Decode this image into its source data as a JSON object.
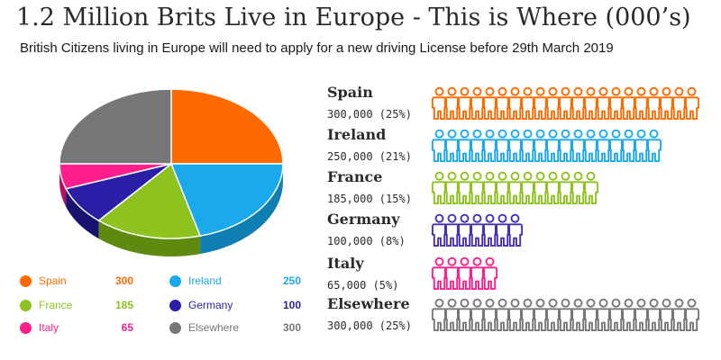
{
  "header": {
    "title": "1.2 Million Brits Live in Europe - This is Where (000’s)",
    "subtitle": "British Citizens living in Europe will need to apply for a new driving License before 29th March 2019"
  },
  "legend": [
    {
      "name": "Spain",
      "value": "300",
      "color": "#ff6a00"
    },
    {
      "name": "Ireland",
      "value": "250",
      "color": "#1aa9ec"
    },
    {
      "name": "France",
      "value": "185",
      "color": "#8dc21f"
    },
    {
      "name": "Germany",
      "value": "100",
      "color": "#2b1fa8"
    },
    {
      "name": "Italy",
      "value": "65",
      "color": "#ff1e8c"
    },
    {
      "name": "Elsewhere",
      "value": "300",
      "color": "#777777"
    }
  ],
  "countries": [
    {
      "name": "Spain",
      "value_text": "300,000 (25%)",
      "people": 21,
      "color": "#ff6a00"
    },
    {
      "name": "Ireland",
      "value_text": "250,000 (21%)",
      "people": 18,
      "color": "#1aa9ec"
    },
    {
      "name": "France",
      "value_text": "185,000 (15%)",
      "people": 13,
      "color": "#8dc21f"
    },
    {
      "name": "Germany",
      "value_text": "100,000 (8%)",
      "people": 7,
      "color": "#4a2fb0"
    },
    {
      "name": "Italy",
      "value_text": "65,000 (5%)",
      "people": 5,
      "color": "#ff1e8c"
    },
    {
      "name": "Elsewhere",
      "value_text": "300,000 (25%)",
      "people": 21,
      "color": "#777777"
    }
  ],
  "chart_data": {
    "type": "pie",
    "categories": [
      "Spain",
      "Ireland",
      "France",
      "Germany",
      "Italy",
      "Elsewhere"
    ],
    "values": [
      300,
      250,
      185,
      100,
      65,
      300
    ],
    "colors": [
      "#ff6a00",
      "#1aa9ec",
      "#8dc21f",
      "#2b1fa8",
      "#ff1e8c",
      "#777777"
    ],
    "side_colors": [
      "#b84c00",
      "#0f7fb3",
      "#5e8a10",
      "#1a1270",
      "#b5105f",
      "#555555"
    ],
    "title": "1.2 Million Brits Live in Europe - This is Where (000’s)",
    "legend_position": "bottom"
  }
}
